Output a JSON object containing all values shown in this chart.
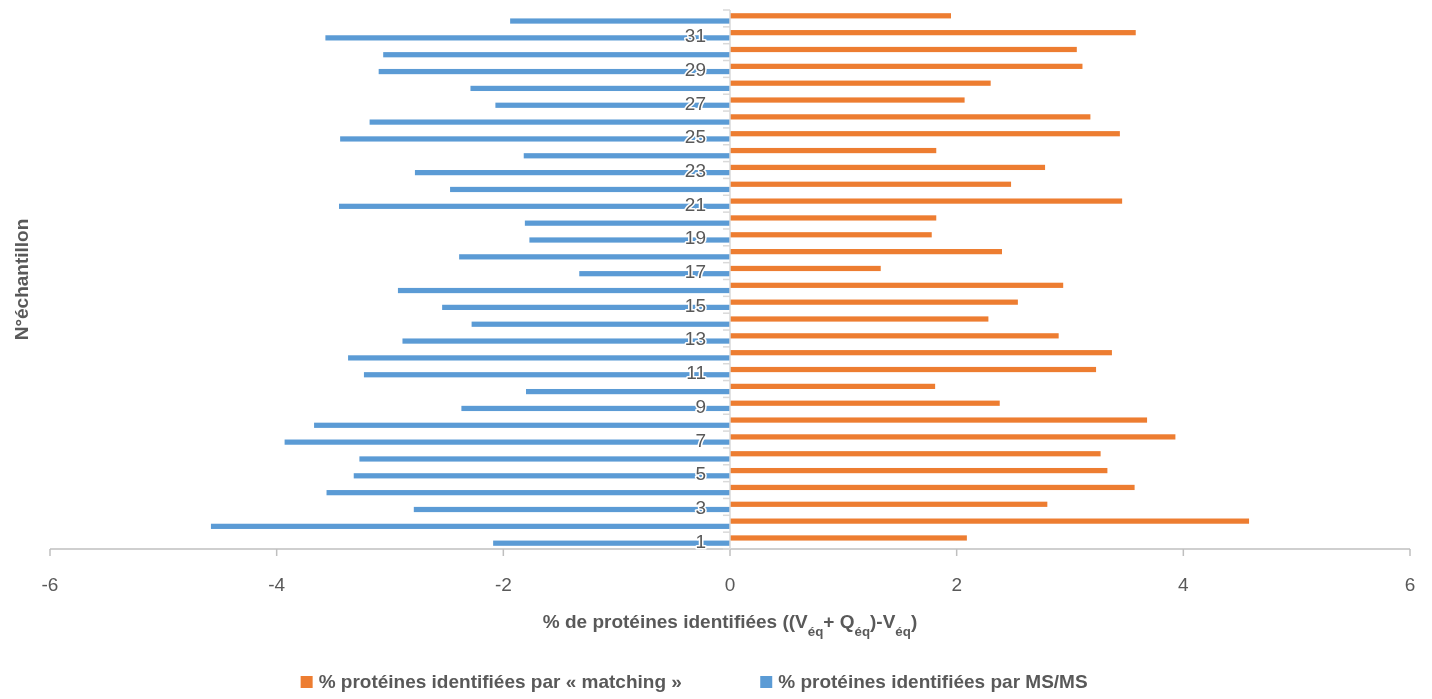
{
  "chart_data": {
    "type": "bar",
    "orientation": "horizontal",
    "xlabel": "% de protéines identifiées ((V$_{éq}$+ Q$_{éq}$)-V$_{éq}$)",
    "ylabel": "N°échantillon",
    "categories": [
      null,
      "31",
      null,
      "29",
      null,
      "27",
      null,
      "25",
      null,
      "23",
      null,
      "21",
      null,
      "19",
      null,
      "17",
      null,
      "15",
      null,
      "13",
      null,
      "11",
      null,
      "9",
      null,
      "7",
      null,
      "5",
      null,
      "3",
      null,
      "1"
    ],
    "series": [
      {
        "name": "% protéines identifiées par « matching »",
        "color": "#ed7d31",
        "values": [
          1.95,
          3.58,
          3.06,
          3.11,
          2.3,
          2.07,
          3.18,
          3.44,
          1.82,
          2.78,
          2.48,
          3.46,
          1.82,
          1.78,
          2.4,
          1.33,
          2.94,
          2.54,
          2.28,
          2.9,
          3.37,
          3.23,
          1.81,
          2.38,
          3.68,
          3.93,
          3.27,
          3.33,
          3.57,
          2.8,
          4.58,
          2.09
        ]
      },
      {
        "name": "% protéines identifiées par MS/MS",
        "color": "#5b9bd5",
        "values": [
          -1.94,
          -3.57,
          -3.06,
          -3.1,
          -2.29,
          -2.07,
          -3.18,
          -3.44,
          -1.82,
          -2.78,
          -2.47,
          -3.45,
          -1.81,
          -1.77,
          -2.39,
          -1.33,
          -2.93,
          -2.54,
          -2.28,
          -2.89,
          -3.37,
          -3.23,
          -1.8,
          -2.37,
          -3.67,
          -3.93,
          -3.27,
          -3.32,
          -3.56,
          -2.79,
          -4.58,
          -2.09
        ]
      }
    ],
    "xlim": [
      -6,
      6
    ],
    "xticks": [
      -6,
      -4,
      -2,
      0,
      2,
      4,
      6
    ],
    "legend": "bottom",
    "grid": false
  }
}
